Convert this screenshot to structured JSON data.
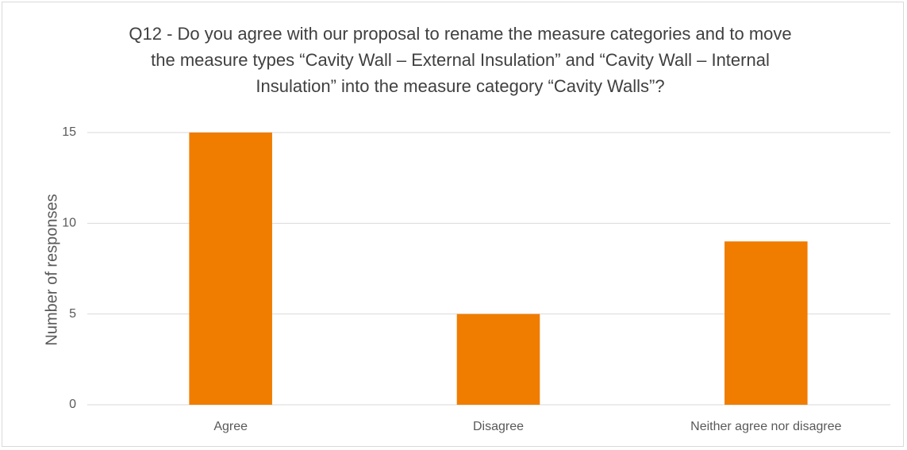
{
  "chart_data": {
    "type": "bar",
    "title": "Q12 - Do you agree with our proposal to rename the measure categories and to move the measure types “Cavity Wall – External Insulation” and “Cavity Wall – Internal Insulation” into the measure category “Cavity Walls”?",
    "y_label": "Number of responses",
    "categories": [
      "Agree",
      "Disagree",
      "Neither agree nor disagree"
    ],
    "values": [
      15,
      5,
      9
    ],
    "color": "#f07c00",
    "ylim": [
      0,
      15
    ],
    "yticks": [
      0,
      5,
      10,
      15
    ],
    "grid": true
  }
}
